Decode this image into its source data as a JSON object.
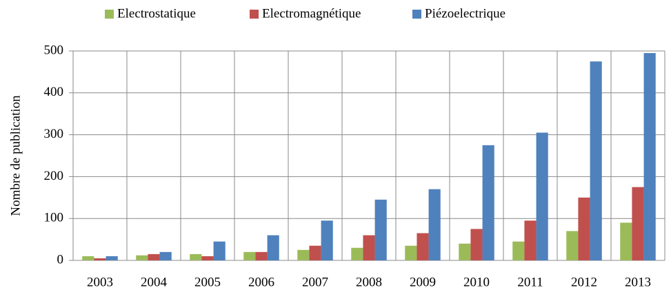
{
  "chart_data": {
    "type": "bar",
    "ylabel": "Nombre de publication",
    "categories": [
      "2003",
      "2004",
      "2005",
      "2006",
      "2007",
      "2008",
      "2009",
      "2010",
      "2011",
      "2012",
      "2013"
    ],
    "series": [
      {
        "name": "Electrostatique",
        "color": "#9bbb59",
        "values": [
          10,
          12,
          15,
          20,
          25,
          30,
          35,
          40,
          45,
          70,
          90
        ]
      },
      {
        "name": "Electromagnétique",
        "color": "#c0504d",
        "values": [
          5,
          15,
          10,
          20,
          35,
          60,
          65,
          75,
          95,
          150,
          175
        ]
      },
      {
        "name": "Piézoelectrique",
        "color": "#4f81bd",
        "values": [
          10,
          20,
          45,
          60,
          95,
          145,
          170,
          275,
          305,
          475,
          495
        ]
      }
    ],
    "ylim": [
      0,
      500
    ],
    "yticks": [
      0,
      100,
      200,
      300,
      400,
      500
    ],
    "grid": true,
    "legend": "top"
  }
}
